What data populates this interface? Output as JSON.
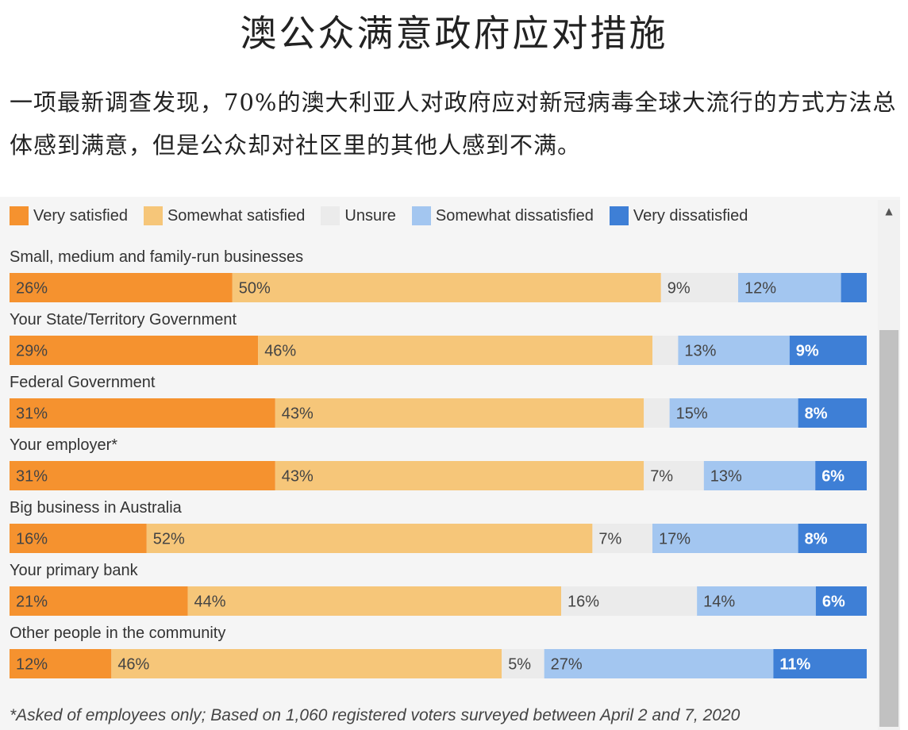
{
  "title": "澳公众满意政府应对措施",
  "subtitle": "一项最新调查发现，70%的澳大利亚人对政府应对新冠病毒全球大流行的方式方法总体感到满意，但是公众却对社区里的其他人感到不满。",
  "footnote": "*Asked of employees only; Based on 1,060 registered voters surveyed between April 2 and 7, 2020",
  "legend": [
    {
      "label": "Very satisfied",
      "color": "#f5922f"
    },
    {
      "label": "Somewhat satisfied",
      "color": "#f6c679"
    },
    {
      "label": "Unsure",
      "color": "#ebebeb"
    },
    {
      "label": "Somewhat dissatisfied",
      "color": "#a3c6f0"
    },
    {
      "label": "Very dissatisfied",
      "color": "#3e7fd6"
    }
  ],
  "scrollbar": {
    "up_icon": "▲"
  },
  "chart_data": {
    "type": "bar",
    "orientation": "horizontal",
    "stacked": true,
    "categories": [
      "Small, medium and family-run businesses",
      "Your State/Territory Government",
      "Federal Government",
      "Your employer*",
      "Big business in Australia",
      "Your primary bank",
      "Other people in the community"
    ],
    "series": [
      {
        "name": "Very satisfied",
        "color": "#f5922f",
        "values": [
          26,
          29,
          31,
          31,
          16,
          21,
          12
        ],
        "labels": [
          "26%",
          "29%",
          "31%",
          "31%",
          "16%",
          "21%",
          "12%"
        ]
      },
      {
        "name": "Somewhat satisfied",
        "color": "#f6c679",
        "values": [
          50,
          46,
          43,
          43,
          52,
          44,
          46
        ],
        "labels": [
          "50%",
          "46%",
          "43%",
          "43%",
          "52%",
          "44%",
          "46%"
        ]
      },
      {
        "name": "Unsure",
        "color": "#ebebeb",
        "values": [
          9,
          3,
          3,
          7,
          7,
          16,
          5
        ],
        "labels": [
          "9%",
          "",
          "",
          "7%",
          "7%",
          "16%",
          "5%"
        ]
      },
      {
        "name": "Somewhat dissatisfied",
        "color": "#a3c6f0",
        "values": [
          12,
          13,
          15,
          13,
          17,
          14,
          27
        ],
        "labels": [
          "12%",
          "13%",
          "15%",
          "13%",
          "17%",
          "14%",
          "27%"
        ]
      },
      {
        "name": "Very dissatisfied",
        "color": "#3e7fd6",
        "values": [
          3,
          9,
          8,
          6,
          8,
          6,
          11
        ],
        "labels": [
          "",
          "9%",
          "8%",
          "6%",
          "8%",
          "6%",
          "11%"
        ]
      }
    ],
    "xlim": [
      0,
      100
    ],
    "legend_position": "top"
  }
}
